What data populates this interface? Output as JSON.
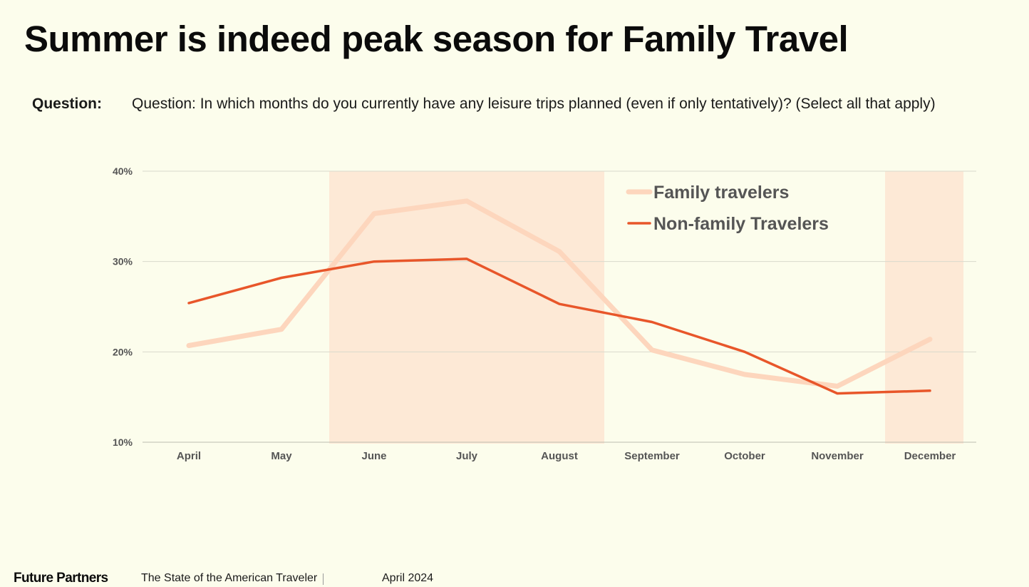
{
  "header": {
    "title": "Summer is indeed peak season for Family Travel",
    "question_label": "Question:",
    "question_text": "Question: In which months do you currently have any leisure trips planned (even if only tentatively)? (Select all that apply)"
  },
  "chart_data": {
    "type": "line",
    "title": "",
    "xlabel": "",
    "ylabel": "",
    "categories": [
      "April",
      "May",
      "June",
      "July",
      "August",
      "September",
      "October",
      "November",
      "December"
    ],
    "y_ticks": [
      10,
      20,
      30,
      40
    ],
    "y_tick_labels": [
      "10%",
      "20%",
      "30%",
      "40%"
    ],
    "ylim": [
      10,
      40
    ],
    "grid": true,
    "legend_position": "top-right",
    "highlighted_ranges": [
      {
        "from": "June",
        "to": "August",
        "color": "#fde9d6"
      },
      {
        "from": "December",
        "to": "December",
        "color": "#fde9d6"
      }
    ],
    "series": [
      {
        "name": "Family travelers",
        "color": "#fdd6bd",
        "values": [
          20.7,
          22.5,
          35.3,
          36.7,
          31.1,
          20.2,
          17.5,
          16.2,
          21.4
        ]
      },
      {
        "name": "Non-family Travelers",
        "color": "#e8562a",
        "values": [
          25.4,
          28.2,
          30.0,
          30.3,
          25.3,
          23.3,
          20.0,
          15.4,
          15.7
        ]
      }
    ]
  },
  "footer": {
    "brand": "Future Partners",
    "report": "The State of the American Traveler",
    "date": "April 2024"
  }
}
